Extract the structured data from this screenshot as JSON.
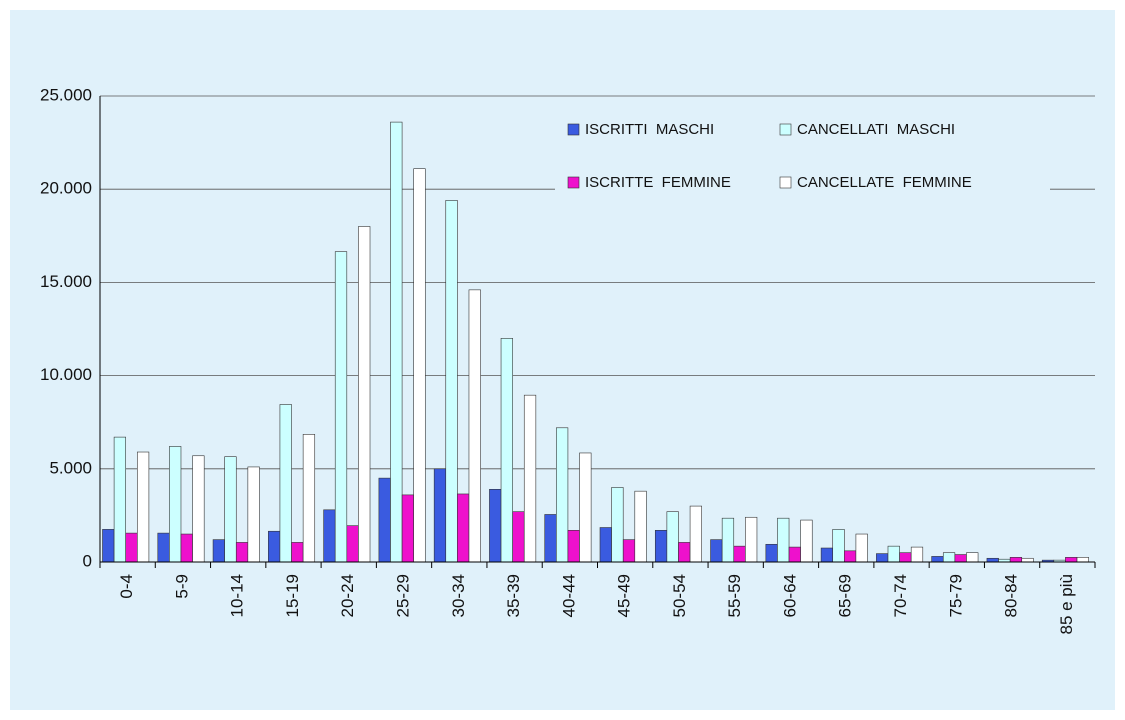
{
  "chart_data": {
    "type": "bar",
    "categories": [
      "0-4",
      "5-9",
      "10-14",
      "15-19",
      "20-24",
      "25-29",
      "30-34",
      "35-39",
      "40-44",
      "45-49",
      "50-54",
      "55-59",
      "60-64",
      "65-69",
      "70-74",
      "75-79",
      "80-84",
      "85 e più"
    ],
    "series": [
      {
        "name": "ISCRITTI  MASCHI",
        "color": "#3a5be0",
        "values": [
          1750,
          1550,
          1200,
          1650,
          2800,
          4500,
          5000,
          3900,
          2550,
          1850,
          1700,
          1200,
          950,
          750,
          450,
          300,
          200,
          100
        ]
      },
      {
        "name": "CANCELLATI  MASCHI",
        "color": "#ccffff",
        "values": [
          6700,
          6200,
          5650,
          8450,
          16650,
          23600,
          19400,
          12000,
          7200,
          4000,
          2700,
          2350,
          2350,
          1750,
          850,
          500,
          150,
          100
        ]
      },
      {
        "name": "ISCRITTE  FEMMINE",
        "color": "#ee11cc",
        "values": [
          1550,
          1500,
          1050,
          1050,
          1950,
          3600,
          3650,
          2700,
          1700,
          1200,
          1050,
          850,
          800,
          600,
          500,
          400,
          250,
          250
        ]
      },
      {
        "name": "CANCELLATE  FEMMINE",
        "color": "#ffffff",
        "values": [
          5900,
          5700,
          5100,
          6850,
          18000,
          21100,
          14600,
          8950,
          5850,
          3800,
          3000,
          2400,
          2250,
          1500,
          800,
          500,
          200,
          250
        ]
      }
    ],
    "ylim": [
      0,
      25000
    ],
    "yticks": [
      0,
      {
        "value": 5000,
        "label": "5.000"
      },
      {
        "value": 10000,
        "label": "10.000"
      },
      {
        "value": 15000,
        "label": "15.000"
      },
      {
        "value": 20000,
        "label": "20.000"
      },
      {
        "value": 25000,
        "label": "25.000"
      }
    ],
    "grid": true
  }
}
